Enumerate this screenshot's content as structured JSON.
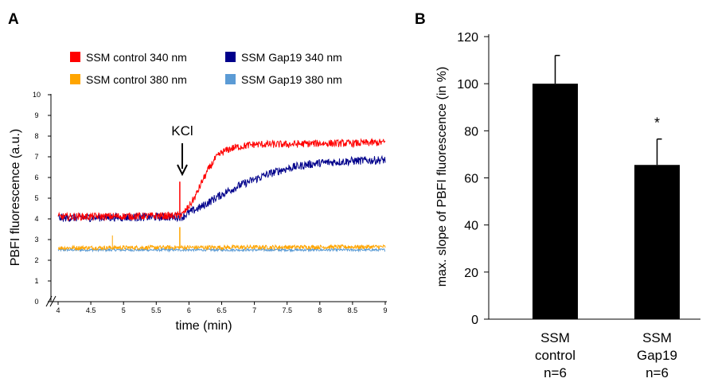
{
  "chart_data": [
    {
      "panel_label": "A",
      "type": "line",
      "xlabel": "time (min)",
      "ylabel": "PBFI fluorescence (a.u.)",
      "xlim": [
        4,
        9
      ],
      "ylim": [
        0,
        10
      ],
      "x_ticks": [
        "4",
        "4.5",
        "5",
        "5.5",
        "6",
        "6.5",
        "7",
        "7.5",
        "8",
        "8.5",
        "9"
      ],
      "y_ticks": [
        "0",
        "1",
        "2",
        "3",
        "4",
        "5",
        "6",
        "7",
        "8",
        "9",
        "10"
      ],
      "annotation": {
        "text": "KCl",
        "x": 5.9
      },
      "legend": {
        "placement": "top"
      },
      "series": [
        {
          "name": "SSM control 340 nm",
          "color": "#ff0000",
          "x": [
            4.0,
            5.8,
            5.9,
            6.0,
            6.1,
            6.2,
            6.3,
            6.4,
            6.5,
            6.6,
            6.7,
            6.8,
            7.0,
            7.5,
            8.0,
            8.5,
            9.0
          ],
          "y": [
            4.1,
            4.15,
            4.2,
            4.6,
            5.1,
            5.8,
            6.4,
            6.9,
            7.2,
            7.35,
            7.45,
            7.5,
            7.6,
            7.6,
            7.65,
            7.65,
            7.7
          ]
        },
        {
          "name": "SSM Gap19 340 nm",
          "color": "#00008b",
          "x": [
            4.0,
            5.9,
            6.0,
            6.2,
            6.4,
            6.6,
            6.8,
            7.0,
            7.2,
            7.4,
            7.6,
            7.8,
            8.0,
            8.5,
            9.0
          ],
          "y": [
            4.05,
            4.1,
            4.3,
            4.6,
            5.0,
            5.35,
            5.65,
            5.9,
            6.15,
            6.35,
            6.5,
            6.62,
            6.7,
            6.8,
            6.85
          ]
        },
        {
          "name": "SSM control 380 nm",
          "color": "#ffa500",
          "x": [
            4.0,
            9.0
          ],
          "y": [
            2.6,
            2.65
          ]
        },
        {
          "name": "SSM Gap19 380 nm",
          "color": "#5b9bd5",
          "x": [
            4.0,
            9.0
          ],
          "y": [
            2.5,
            2.5
          ]
        }
      ]
    },
    {
      "panel_label": "B",
      "type": "bar",
      "ylabel": "max. slope of PBFI fluorescence (in %)",
      "ylim": [
        0,
        120
      ],
      "y_ticks": [
        "0",
        "20",
        "40",
        "60",
        "80",
        "100",
        "120"
      ],
      "categories": [
        {
          "lines": [
            "SSM",
            "control",
            "n=6"
          ]
        },
        {
          "lines": [
            "SSM",
            "Gap19",
            "n=6"
          ]
        }
      ],
      "values": [
        100,
        65.5
      ],
      "errors": [
        12,
        11
      ],
      "significance": [
        "",
        "*"
      ],
      "bar_color": "#000000"
    }
  ]
}
